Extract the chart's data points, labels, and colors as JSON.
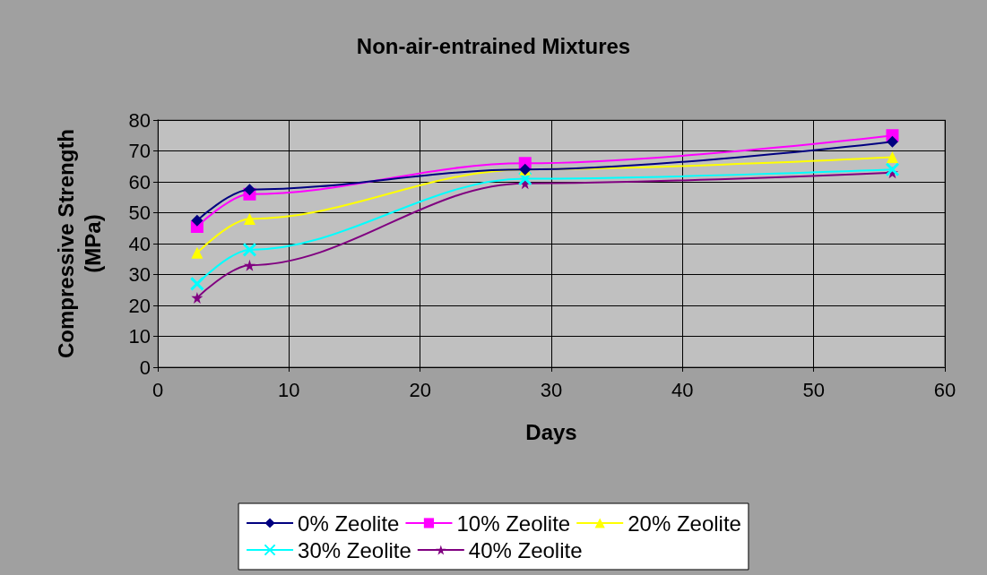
{
  "chart_data": {
    "type": "line",
    "title": "Non-air-entrained Mixtures",
    "xlabel": "Days",
    "ylabel": "Compressive Strength\n(MPa)",
    "x": [
      3,
      7,
      28,
      56
    ],
    "series": [
      {
        "name": "0% Zeolite",
        "color": "#000080",
        "marker": "diamond",
        "values": [
          47.5,
          57.5,
          64,
          73
        ]
      },
      {
        "name": "10% Zeolite",
        "color": "#ff00ff",
        "marker": "square",
        "values": [
          45.5,
          56,
          66,
          75
        ]
      },
      {
        "name": "20% Zeolite",
        "color": "#ffff00",
        "marker": "triangle",
        "values": [
          37,
          48,
          64,
          68
        ]
      },
      {
        "name": "30% Zeolite",
        "color": "#00ffff",
        "marker": "cross",
        "values": [
          27,
          38,
          61,
          64
        ]
      },
      {
        "name": "40% Zeolite",
        "color": "#800080",
        "marker": "star",
        "values": [
          22.5,
          33,
          59.5,
          63
        ]
      }
    ],
    "xlim": [
      0,
      60
    ],
    "xticks": [
      0,
      10,
      20,
      30,
      40,
      50,
      60
    ],
    "ylim": [
      0,
      80
    ],
    "yticks": [
      0,
      10,
      20,
      30,
      40,
      50,
      60,
      70,
      80
    ],
    "grid": true,
    "legend": "bottom"
  }
}
